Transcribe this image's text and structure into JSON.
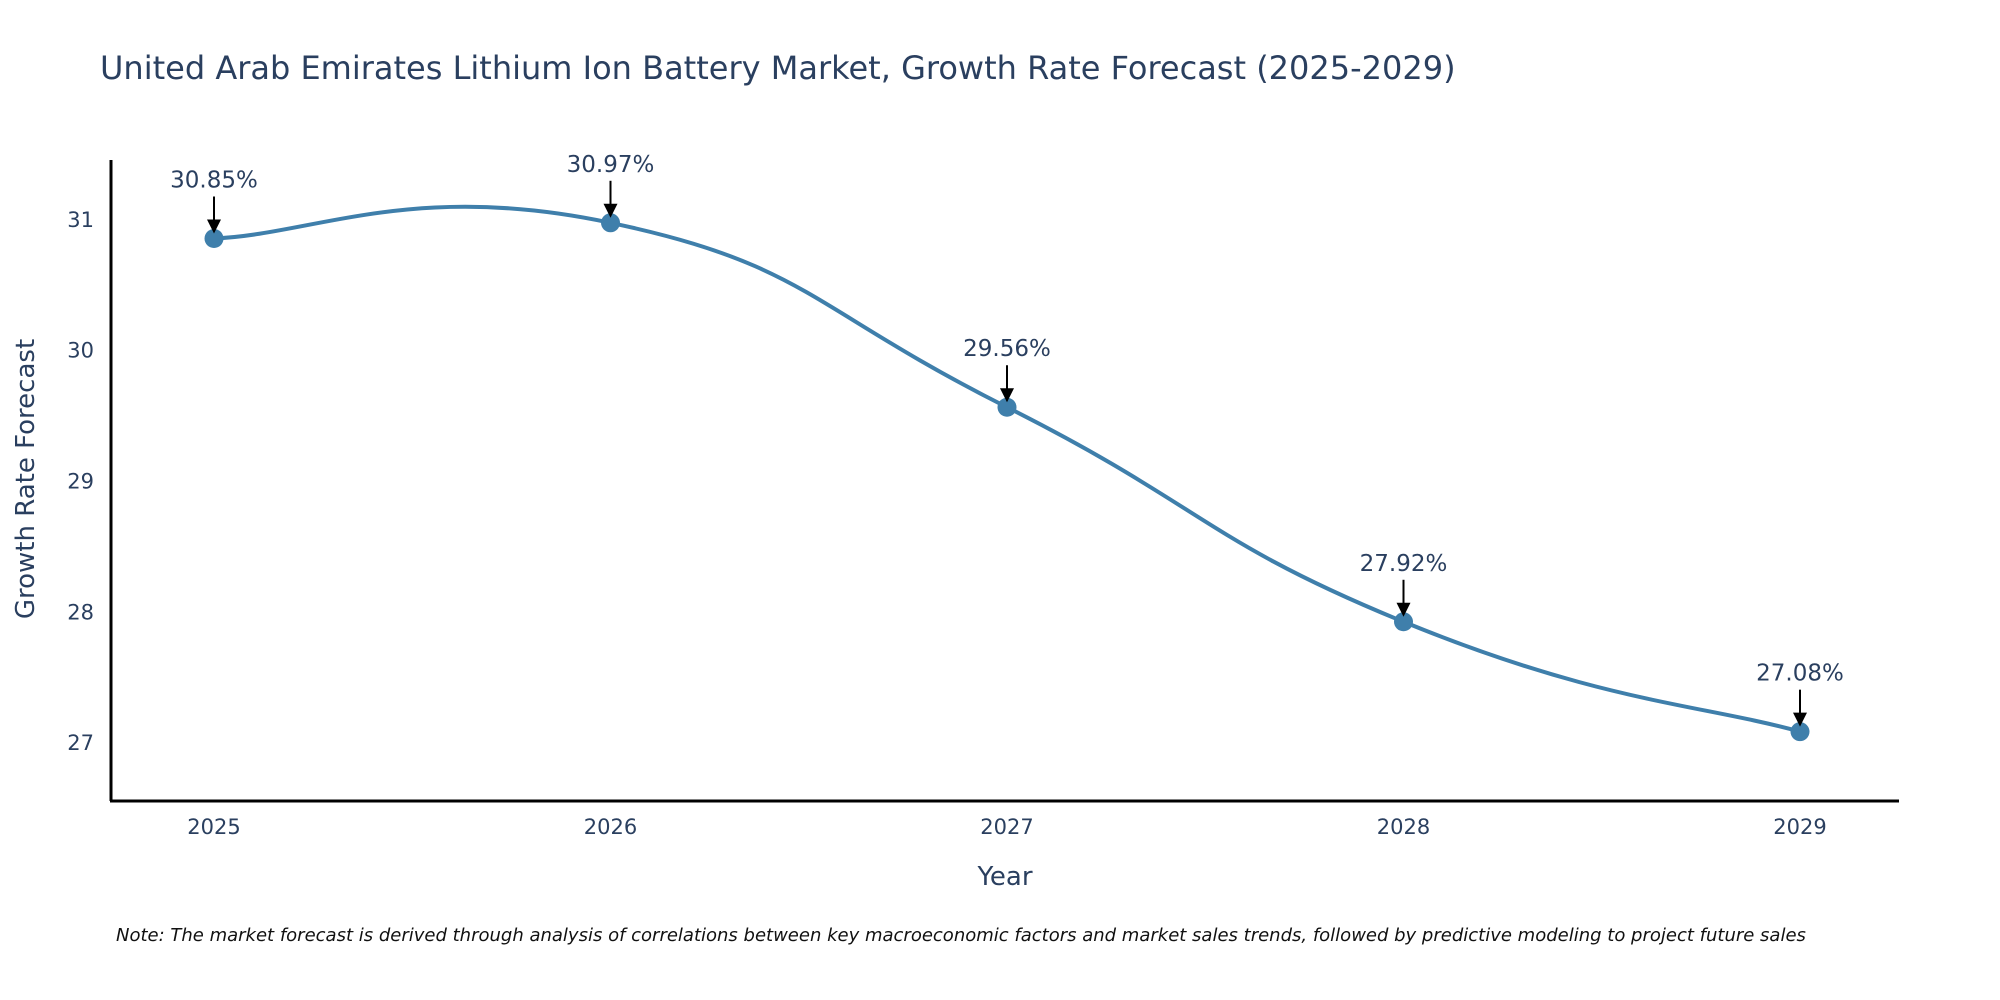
{
  "chart_data": {
    "type": "line",
    "title": "United Arab Emirates Lithium Ion Battery Market, Growth Rate Forecast (2025-2029)",
    "xlabel": "Year",
    "ylabel": "Growth Rate Forecast",
    "categories": [
      "2025",
      "2026",
      "2027",
      "2028",
      "2029"
    ],
    "series": [
      {
        "name": "Growth Rate Forecast",
        "values": [
          30.85,
          30.97,
          29.56,
          27.92,
          27.08
        ],
        "labels": [
          "30.85%",
          "30.97%",
          "29.56%",
          "27.92%",
          "27.08%"
        ]
      }
    ],
    "y_ticks": [
      27,
      28,
      29,
      30,
      31
    ],
    "ylim": [
      26.55,
      31.45
    ],
    "grid": false,
    "line_shape": "spline",
    "annotation_arrows": true
  },
  "colors": {
    "line": "#3f7fab",
    "marker": "#3f7fab",
    "text": "#2a3f5f",
    "axis": "#000000",
    "arrow": "#000000"
  },
  "note": "Note: The market forecast is derived through analysis of correlations between key macroeconomic factors and market sales trends, followed by predictive modeling to project future sales"
}
